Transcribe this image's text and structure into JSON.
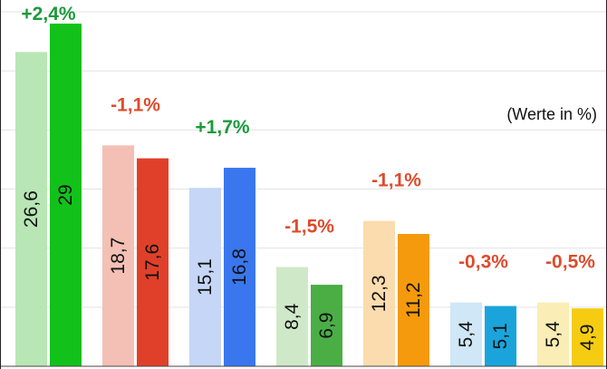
{
  "chart_data": {
    "type": "bar",
    "unit_note": "(Werte in %)",
    "ylim": [
      0,
      31
    ],
    "grid": true,
    "groups": [
      {
        "values": [
          26.6,
          29
        ],
        "value_labels": [
          "26,6",
          "29"
        ],
        "change": "+2,4%",
        "change_color": "#1a9a3a",
        "colors": [
          "#b8e6b5",
          "#12c21a"
        ]
      },
      {
        "values": [
          18.7,
          17.6
        ],
        "value_labels": [
          "18,7",
          "17,6"
        ],
        "change": "-1,1%",
        "change_color": "#dd4b2c",
        "colors": [
          "#f4c0b5",
          "#e0402a"
        ]
      },
      {
        "values": [
          15.1,
          16.8
        ],
        "value_labels": [
          "15,1",
          "16,8"
        ],
        "change": "+1,7%",
        "change_color": "#1a9a3a",
        "colors": [
          "#c5d6f6",
          "#3a77ee"
        ]
      },
      {
        "values": [
          8.4,
          6.9
        ],
        "value_labels": [
          "8,4",
          "6,9"
        ],
        "change": "-1,5%",
        "change_color": "#dd4b2c",
        "colors": [
          "#cfe9c8",
          "#4aae45"
        ]
      },
      {
        "values": [
          12.3,
          11.2
        ],
        "value_labels": [
          "12,3",
          "11,2"
        ],
        "change": "-1,1%",
        "change_color": "#dd4b2c",
        "colors": [
          "#fbdcae",
          "#f59a0c"
        ]
      },
      {
        "values": [
          5.4,
          5.1
        ],
        "value_labels": [
          "5,4",
          "5,1"
        ],
        "change": "-0,3%",
        "change_color": "#dd4b2c",
        "colors": [
          "#cfe7f6",
          "#1ba4db"
        ]
      },
      {
        "values": [
          5.4,
          4.9
        ],
        "value_labels": [
          "5,4",
          "4,9"
        ],
        "change": "-0,5%",
        "change_color": "#dd4b2c",
        "colors": [
          "#faedb5",
          "#f6cc12"
        ]
      }
    ]
  }
}
